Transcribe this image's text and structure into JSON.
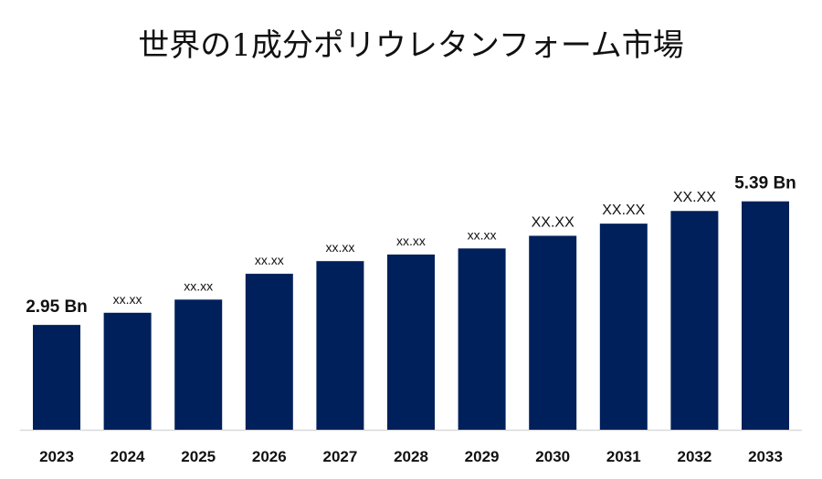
{
  "title": "世界の1成分ポリウレタンフォーム市場",
  "colors": {
    "bar": "#00205B",
    "axis": "#d9d9d9",
    "text": "#111111"
  },
  "chart_data": {
    "type": "bar",
    "title": "世界の1成分ポリウレタンフォーム市場",
    "xlabel": "",
    "ylabel": "",
    "categories": [
      "2023",
      "2024",
      "2025",
      "2026",
      "2027",
      "2028",
      "2029",
      "2030",
      "2031",
      "2032",
      "2033"
    ],
    "values": [
      2.95,
      3.19,
      3.45,
      3.96,
      4.21,
      4.34,
      4.46,
      4.71,
      4.95,
      5.2,
      5.39
    ],
    "data_labels": [
      "2.95 Bn",
      "xx.xx",
      "xx.xx",
      "xx.xx",
      "xx.xx",
      "xx.xx",
      "xx.xx",
      "XX.XX",
      "XX.XX",
      "XX.XX",
      "5.39 Bn"
    ],
    "grid": false,
    "legend": "none"
  }
}
